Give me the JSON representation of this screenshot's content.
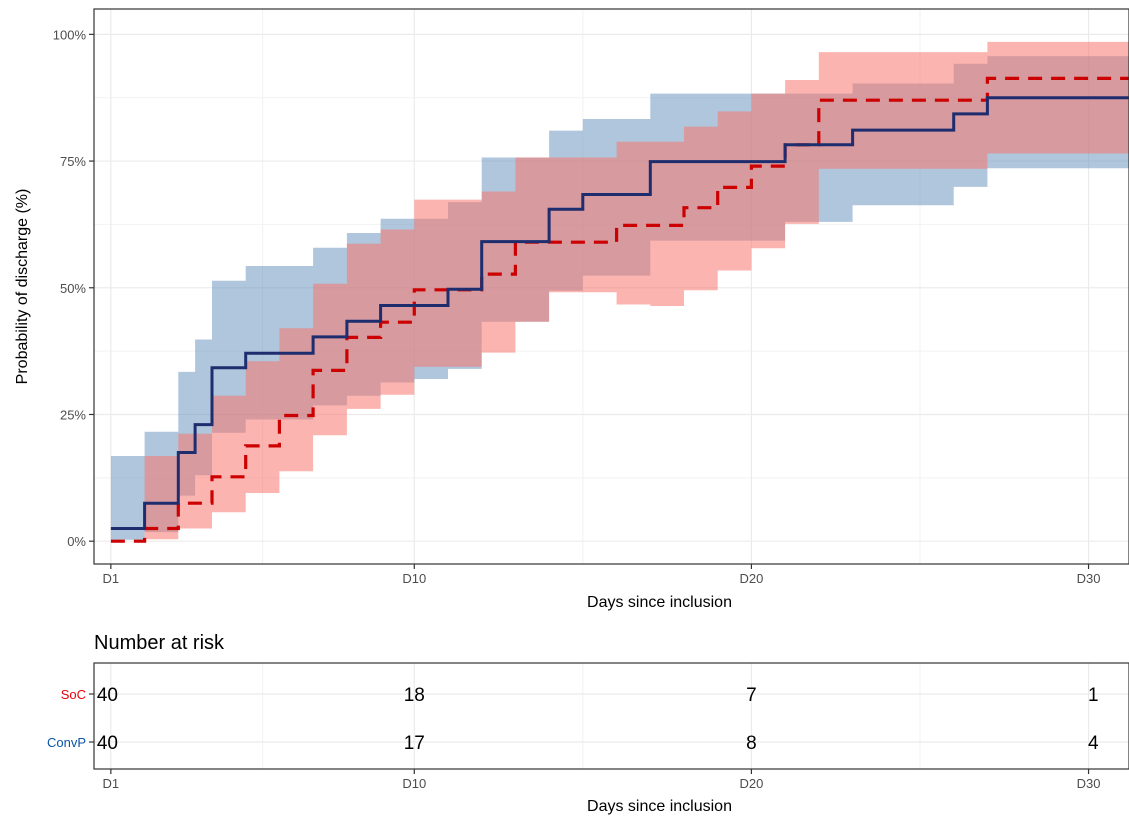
{
  "chart_data": [
    {
      "type": "line",
      "subtype": "kaplan-meier-step",
      "xlabel": "Days since inclusion",
      "ylabel": "Probability of discharge (%)",
      "xlim": [
        0.5,
        31.2
      ],
      "ylim": [
        -4.5,
        105
      ],
      "x_ticks": [
        1,
        10,
        20,
        30
      ],
      "x_tick_labels": [
        "D1",
        "D10",
        "D20",
        "D30"
      ],
      "y_ticks": [
        0,
        25,
        50,
        75,
        100
      ],
      "y_tick_labels": [
        "0%",
        "25%",
        "50%",
        "75%",
        "100%"
      ],
      "grid": true,
      "legend": "none",
      "series": [
        {
          "key": "soc",
          "color": "#cc0000",
          "band_color": "#f8766d",
          "line_style": "dashed",
          "x": [
            1,
            2,
            3,
            4,
            5,
            6,
            7,
            8,
            9,
            10,
            11,
            12,
            13,
            14,
            16,
            17,
            18,
            19,
            20,
            21,
            22,
            27,
            32
          ],
          "y": [
            0,
            2.5,
            7.5,
            12.7,
            18.8,
            24.8,
            33.7,
            40.2,
            43.2,
            49.6,
            49.6,
            52.7,
            59,
            59,
            62.3,
            62.3,
            65.8,
            69.8,
            74,
            78.2,
            87,
            91.3,
            91.3
          ],
          "lower": [
            0,
            0.4,
            2.5,
            5.7,
            9.5,
            13.8,
            20.9,
            26.1,
            28.9,
            34.4,
            34.4,
            37.2,
            43.3,
            49.1,
            46.7,
            46.4,
            49.5,
            53.4,
            57.8,
            62.6,
            73.5,
            76.5,
            76.5
          ],
          "upper": [
            0,
            16.8,
            21.2,
            28.7,
            35.5,
            42,
            50.8,
            58.7,
            61.5,
            67.4,
            67.4,
            69,
            75.7,
            75.7,
            78.8,
            78.8,
            81.8,
            84.8,
            88.3,
            91,
            96.5,
            98.5,
            98.5
          ]
        },
        {
          "key": "convp",
          "color": "#1e2d6e",
          "band_color": "#6f98c0",
          "line_style": "solid",
          "x": [
            1,
            2,
            3,
            3.5,
            4,
            5,
            6,
            7,
            8,
            9,
            10,
            11,
            12,
            14,
            15,
            17,
            21,
            23,
            26,
            27,
            32
          ],
          "y": [
            2.5,
            7.5,
            17.5,
            23,
            34.2,
            37.1,
            37.1,
            40.3,
            43.4,
            46.5,
            46.5,
            49.7,
            59.1,
            65.5,
            68.4,
            74.9,
            78.2,
            81.1,
            84.3,
            87.5,
            87.5
          ],
          "lower": [
            0.3,
            1.8,
            9,
            13,
            21.4,
            24,
            24,
            26.8,
            28.7,
            31.3,
            32,
            34,
            43.3,
            49.4,
            52.4,
            59.3,
            63,
            66.3,
            69.9,
            73.6,
            73.6
          ],
          "upper": [
            16.8,
            21.6,
            33.4,
            39.8,
            51.4,
            54.3,
            54.3,
            57.9,
            60.8,
            63.6,
            63.6,
            66.9,
            75.7,
            81,
            83.3,
            88.3,
            88.3,
            90.3,
            94.2,
            95.7,
            95.7
          ]
        }
      ]
    },
    {
      "type": "table",
      "title": "Number at risk",
      "xlabel": "Days since inclusion",
      "columns": [
        "D1",
        "D10",
        "D20",
        "D30"
      ],
      "column_x": [
        1,
        10,
        20,
        30
      ],
      "rows": [
        {
          "label": "SoC",
          "color": "#e8000b",
          "values": [
            40,
            18,
            7,
            1
          ]
        },
        {
          "label": "ConvP",
          "color": "#0a53a6",
          "values": [
            40,
            17,
            8,
            4
          ]
        }
      ]
    }
  ]
}
